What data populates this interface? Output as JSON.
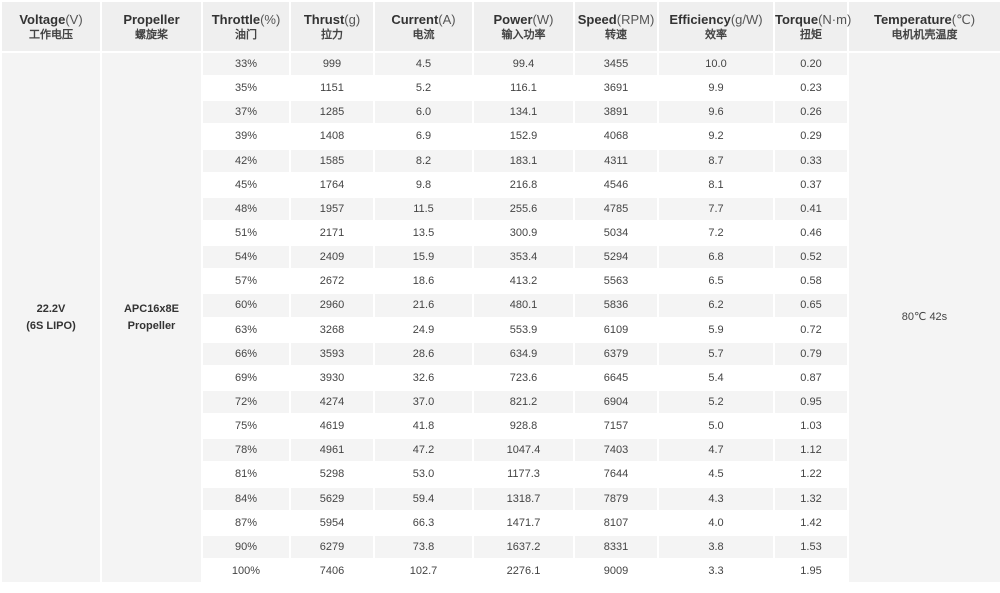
{
  "headers": [
    {
      "en": "Voltage",
      "unit": "(V)",
      "zh": "工作电压"
    },
    {
      "en": "Propeller",
      "unit": "",
      "zh": "螺旋桨"
    },
    {
      "en": "Throttle",
      "unit": "(%)",
      "zh": "油门"
    },
    {
      "en": "Thrust",
      "unit": "(g)",
      "zh": "拉力"
    },
    {
      "en": "Current",
      "unit": "(A)",
      "zh": "电流"
    },
    {
      "en": "Power",
      "unit": "(W)",
      "zh": "输入功率"
    },
    {
      "en": "Speed",
      "unit": "(RPM)",
      "zh": "转速"
    },
    {
      "en": "Efficiency",
      "unit": "(g/W)",
      "zh": "效率"
    },
    {
      "en": "Torque",
      "unit": "(N·m)",
      "zh": "扭矩"
    },
    {
      "en": "Temperature",
      "unit": "(℃)",
      "zh": "电机机壳温度"
    }
  ],
  "voltage": {
    "line1": "22.2V",
    "line2": "(6S LIPO)"
  },
  "propeller": {
    "line1": "APC16x8E",
    "line2": "Propeller"
  },
  "temperature": "80℃  42s",
  "rows": [
    [
      "33%",
      "999",
      "4.5",
      "99.4",
      "3455",
      "10.0",
      "0.20"
    ],
    [
      "35%",
      "1151",
      "5.2",
      "116.1",
      "3691",
      "9.9",
      "0.23"
    ],
    [
      "37%",
      "1285",
      "6.0",
      "134.1",
      "3891",
      "9.6",
      "0.26"
    ],
    [
      "39%",
      "1408",
      "6.9",
      "152.9",
      "4068",
      "9.2",
      "0.29"
    ],
    [
      "42%",
      "1585",
      "8.2",
      "183.1",
      "4311",
      "8.7",
      "0.33"
    ],
    [
      "45%",
      "1764",
      "9.8",
      "216.8",
      "4546",
      "8.1",
      "0.37"
    ],
    [
      "48%",
      "1957",
      "11.5",
      "255.6",
      "4785",
      "7.7",
      "0.41"
    ],
    [
      "51%",
      "2171",
      "13.5",
      "300.9",
      "5034",
      "7.2",
      "0.46"
    ],
    [
      "54%",
      "2409",
      "15.9",
      "353.4",
      "5294",
      "6.8",
      "0.52"
    ],
    [
      "57%",
      "2672",
      "18.6",
      "413.2",
      "5563",
      "6.5",
      "0.58"
    ],
    [
      "60%",
      "2960",
      "21.6",
      "480.1",
      "5836",
      "6.2",
      "0.65"
    ],
    [
      "63%",
      "3268",
      "24.9",
      "553.9",
      "6109",
      "5.9",
      "0.72"
    ],
    [
      "66%",
      "3593",
      "28.6",
      "634.9",
      "6379",
      "5.7",
      "0.79"
    ],
    [
      "69%",
      "3930",
      "32.6",
      "723.6",
      "6645",
      "5.4",
      "0.87"
    ],
    [
      "72%",
      "4274",
      "37.0",
      "821.2",
      "6904",
      "5.2",
      "0.95"
    ],
    [
      "75%",
      "4619",
      "41.8",
      "928.8",
      "7157",
      "5.0",
      "1.03"
    ],
    [
      "78%",
      "4961",
      "47.2",
      "1047.4",
      "7403",
      "4.7",
      "1.12"
    ],
    [
      "81%",
      "5298",
      "53.0",
      "1177.3",
      "7644",
      "4.5",
      "1.22"
    ],
    [
      "84%",
      "5629",
      "59.4",
      "1318.7",
      "7879",
      "4.3",
      "1.32"
    ],
    [
      "87%",
      "5954",
      "66.3",
      "1471.7",
      "8107",
      "4.0",
      "1.42"
    ],
    [
      "90%",
      "6279",
      "73.8",
      "1637.2",
      "8331",
      "3.8",
      "1.53"
    ],
    [
      "100%",
      "7406",
      "102.7",
      "2276.1",
      "9009",
      "3.3",
      "1.95"
    ]
  ]
}
